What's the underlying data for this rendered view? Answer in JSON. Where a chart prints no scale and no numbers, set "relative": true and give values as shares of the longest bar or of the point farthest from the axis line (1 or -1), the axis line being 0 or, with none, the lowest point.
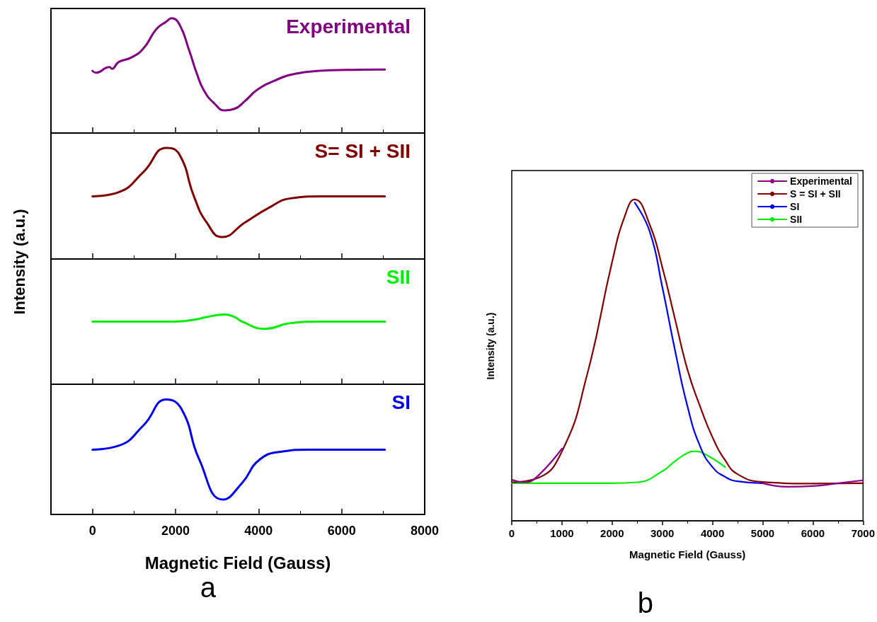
{
  "chart_data": [
    {
      "type": "line",
      "relative": true,
      "x": [
        0,
        80,
        410,
        470,
        630,
        930,
        1230,
        1540,
        1780,
        1900,
        2090,
        2330,
        2510,
        2690,
        2940,
        3180,
        3420,
        3670,
        3970,
        4400,
        4880,
        5490,
        6100,
        7040
      ],
      "series": [
        {
          "name": "Experimental",
          "color": "#800080",
          "values": [
            0.542,
            0.525,
            0.575,
            0.56,
            0.619,
            0.657,
            0.738,
            0.906,
            0.971,
            1,
            0.949,
            0.718,
            0.521,
            0.367,
            0.256,
            0.197,
            0.211,
            0.278,
            0.377,
            0.459,
            0.516,
            0.542,
            0.55,
            0.553
          ]
        }
      ],
      "xlim": [
        -1000,
        8000
      ],
      "xticks": [
        0,
        2000,
        4000,
        6000,
        8000
      ],
      "tick_labels": false,
      "ylabel": "Intensity (a.u.)"
    },
    {
      "type": "line",
      "relative": true,
      "x": [
        0,
        630,
        1230,
        1780,
        2090,
        2450,
        2750,
        3120,
        3670,
        4270,
        4760,
        5490,
        7040
      ],
      "series": [
        {
          "name": "S= SI + SII",
          "color": "#800000",
          "values": [
            0.563,
            0.601,
            0.784,
            1,
            0.942,
            0.556,
            0.328,
            0.197,
            0.328,
            0.465,
            0.545,
            0.563,
            0.563
          ]
        }
      ],
      "xlim": [
        -1000,
        8000
      ],
      "xticks": [
        0,
        2000,
        4000,
        6000,
        8000
      ],
      "tick_labels": false
    },
    {
      "type": "line",
      "relative": true,
      "x": [
        0,
        1960,
        2450,
        2750,
        3180,
        3420,
        3600,
        4150,
        4760,
        5490,
        7040
      ],
      "series": [
        {
          "name": "SII",
          "color": "#00ee00",
          "values": [
            0.898,
            0.898,
            0.925,
            0.964,
            1,
            0.964,
            0.898,
            0.794,
            0.876,
            0.898,
            0.898
          ]
        }
      ],
      "xlim": [
        -1000,
        8000
      ],
      "xticks": [
        0,
        2000,
        4000,
        6000,
        8000
      ],
      "tick_labels": false
    },
    {
      "type": "line",
      "relative": true,
      "x": [
        0,
        630,
        1230,
        1780,
        2150,
        2570,
        3140,
        3600,
        4030,
        4580,
        5190,
        7040
      ],
      "series": [
        {
          "name": "SI",
          "color": "#0000ee",
          "values": [
            0.564,
            0.598,
            0.776,
            1,
            0.913,
            0.479,
            0.129,
            0.273,
            0.479,
            0.548,
            0.564,
            0.564
          ]
        }
      ],
      "xlim": [
        -1000,
        8000
      ],
      "xticks": [
        0,
        2000,
        4000,
        6000,
        8000
      ],
      "tick_labels": "x",
      "xlabel": "Magnetic Field (Gauss)",
      "annotations": [
        "a"
      ]
    },
    {
      "type": "line",
      "relative": true,
      "series": [
        {
          "name": "Experimental",
          "color": "#8b008b",
          "x": [
            0,
            250,
            500,
            1000,
            1500,
            2000,
            2250,
            2450,
            2750,
            3000,
            3250,
            3500,
            3750,
            4000,
            4250,
            4500,
            5000,
            5500,
            6000,
            6500,
            7000
          ],
          "values": [
            0.128,
            0.12,
            0.137,
            0.225,
            null,
            null,
            null,
            null,
            null,
            null,
            null,
            null,
            null,
            null,
            null,
            null,
            0.117,
            0.106,
            0.108,
            0.117,
            0.126
          ]
        },
        {
          "name": "S = SI + SII",
          "color": "#800000",
          "x": [
            0,
            500,
            1000,
            1500,
            2000,
            2250,
            2450,
            2750,
            3000,
            3250,
            3500,
            3750,
            4000,
            4250,
            4500,
            5000,
            6000,
            7000
          ],
          "values": [
            0.12,
            0.132,
            0.216,
            0.454,
            0.806,
            0.947,
            1,
            0.921,
            0.789,
            0.63,
            0.471,
            0.357,
            0.26,
            0.189,
            0.145,
            0.121,
            0.116,
            0.117
          ]
        },
        {
          "name": "SI",
          "color": "#0000ee",
          "x": [
            2450,
            2750,
            3000,
            3250,
            3500,
            3750,
            4000,
            4250,
            4500,
            5000
          ],
          "values": [
            0.99,
            0.9,
            0.727,
            0.533,
            0.357,
            0.233,
            0.167,
            0.137,
            0.123,
            0.117
          ]
        },
        {
          "name": "SII",
          "color": "#00ee00",
          "x": [
            0,
            2000,
            2500,
            3000,
            3250,
            3500,
            3650,
            3900,
            4250
          ],
          "values": [
            0.117,
            0.117,
            0.12,
            0.154,
            0.185,
            0.211,
            0.216,
            0.203,
            0.167
          ]
        }
      ],
      "xlim": [
        0,
        7000
      ],
      "xticks": [
        0,
        1000,
        2000,
        3000,
        4000,
        5000,
        6000,
        7000
      ],
      "xlabel": "Magnetic Field (Gauss)",
      "ylabel": "Intensity (a.u.)",
      "legend": "top right",
      "annotations": [
        "b"
      ]
    }
  ]
}
